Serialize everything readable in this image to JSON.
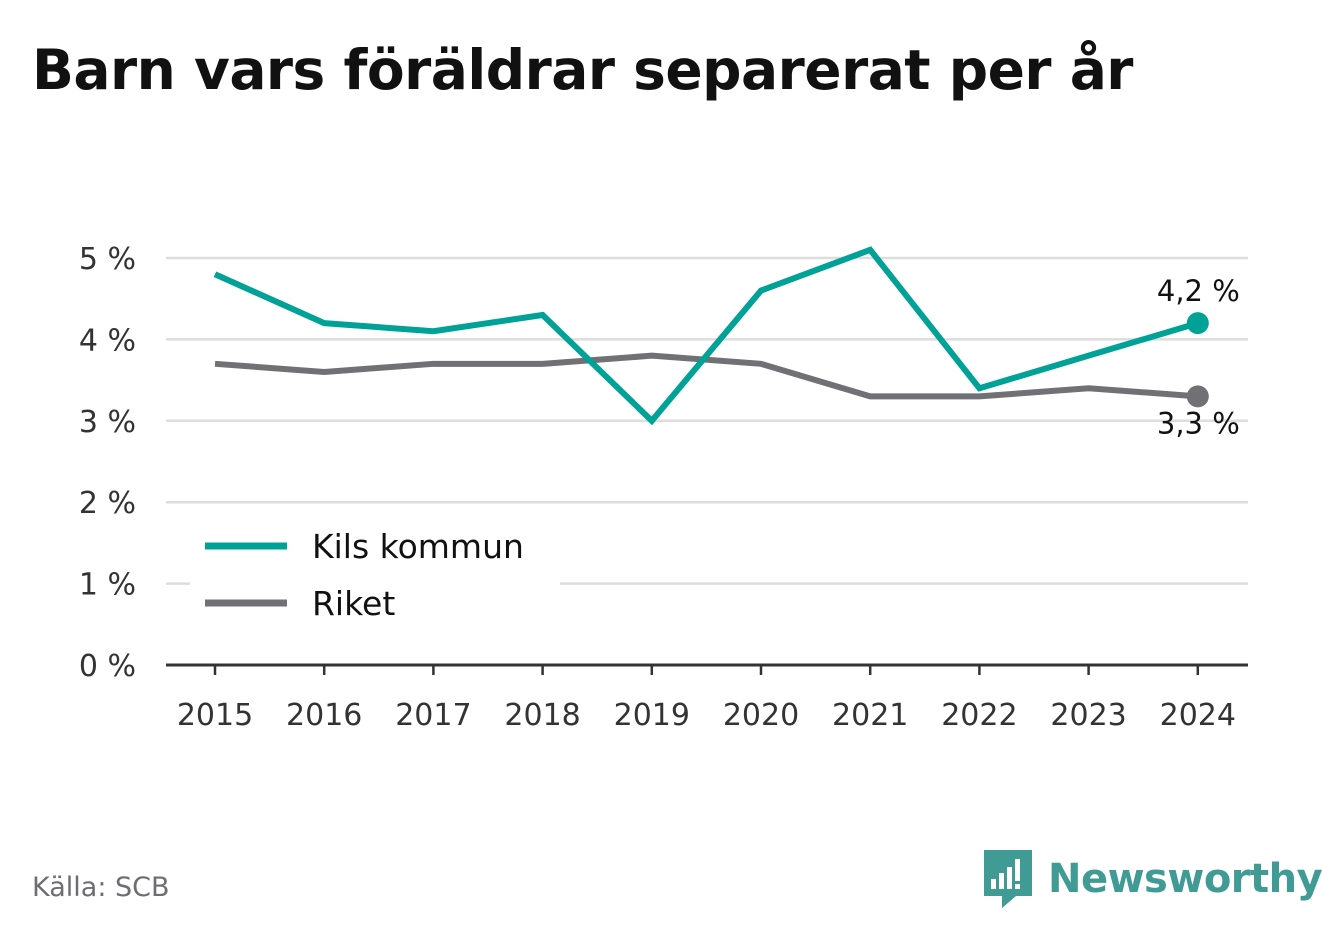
{
  "title": "Barn vars föräldrar separerat per år",
  "source": "Källa: SCB",
  "brand": {
    "name": "Newsworthy",
    "icon": "newsworthy-logo-icon"
  },
  "colors": {
    "kils": "#00a196",
    "riket": "#707075",
    "grid": "#dddddd",
    "axis": "#333333",
    "text": "#333333"
  },
  "chart_data": {
    "type": "line",
    "x": [
      "2015",
      "2016",
      "2017",
      "2018",
      "2019",
      "2020",
      "2021",
      "2022",
      "2023",
      "2024"
    ],
    "ylim": [
      0,
      5
    ],
    "yticks": [
      0,
      1,
      2,
      3,
      4,
      5
    ],
    "ytick_labels": [
      "0 %",
      "1 %",
      "2 %",
      "3 %",
      "4 %",
      "5 %"
    ],
    "grid": true,
    "legend": "bottom-left",
    "series": [
      {
        "name": "Kils kommun",
        "color": "#00a196",
        "values": [
          4.8,
          4.2,
          4.1,
          4.3,
          3.0,
          4.6,
          5.1,
          3.4,
          3.8,
          4.2
        ],
        "end_label": "4,2 %"
      },
      {
        "name": "Riket",
        "color": "#707075",
        "values": [
          3.7,
          3.6,
          3.7,
          3.7,
          3.8,
          3.7,
          3.3,
          3.3,
          3.4,
          3.3
        ],
        "end_label": "3,3 %"
      }
    ]
  }
}
